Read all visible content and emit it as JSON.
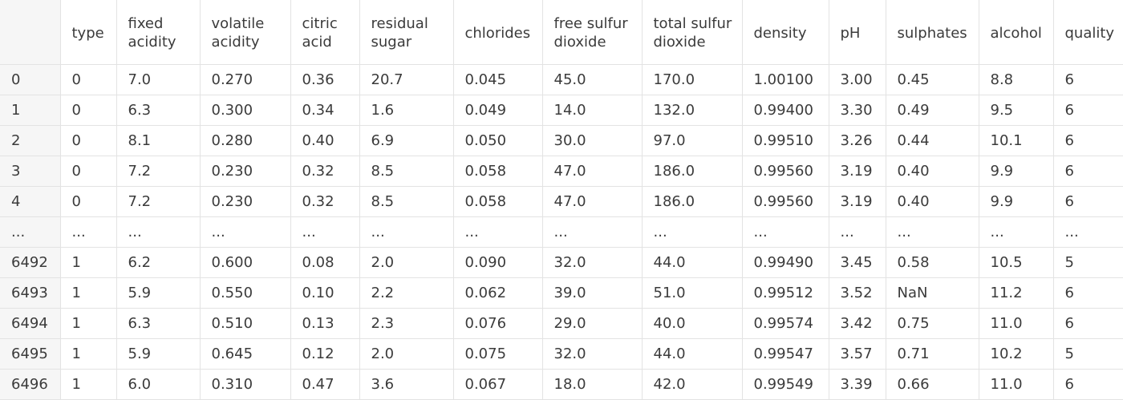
{
  "table": {
    "columns": [
      "",
      "type",
      "fixed acidity",
      "volatile acidity",
      "citric acid",
      "residual sugar",
      "chlorides",
      "free sulfur dioxide",
      "total sulfur dioxide",
      "density",
      "pH",
      "sulphates",
      "alcohol",
      "quality"
    ],
    "rows": [
      [
        "0",
        "0",
        "7.0",
        "0.270",
        "0.36",
        "20.7",
        "0.045",
        "45.0",
        "170.0",
        "1.00100",
        "3.00",
        "0.45",
        "8.8",
        "6"
      ],
      [
        "1",
        "0",
        "6.3",
        "0.300",
        "0.34",
        "1.6",
        "0.049",
        "14.0",
        "132.0",
        "0.99400",
        "3.30",
        "0.49",
        "9.5",
        "6"
      ],
      [
        "2",
        "0",
        "8.1",
        "0.280",
        "0.40",
        "6.9",
        "0.050",
        "30.0",
        "97.0",
        "0.99510",
        "3.26",
        "0.44",
        "10.1",
        "6"
      ],
      [
        "3",
        "0",
        "7.2",
        "0.230",
        "0.32",
        "8.5",
        "0.058",
        "47.0",
        "186.0",
        "0.99560",
        "3.19",
        "0.40",
        "9.9",
        "6"
      ],
      [
        "4",
        "0",
        "7.2",
        "0.230",
        "0.32",
        "8.5",
        "0.058",
        "47.0",
        "186.0",
        "0.99560",
        "3.19",
        "0.40",
        "9.9",
        "6"
      ],
      [
        "...",
        "...",
        "...",
        "...",
        "...",
        "...",
        "...",
        "...",
        "...",
        "...",
        "...",
        "...",
        "...",
        "..."
      ],
      [
        "6492",
        "1",
        "6.2",
        "0.600",
        "0.08",
        "2.0",
        "0.090",
        "32.0",
        "44.0",
        "0.99490",
        "3.45",
        "0.58",
        "10.5",
        "5"
      ],
      [
        "6493",
        "1",
        "5.9",
        "0.550",
        "0.10",
        "2.2",
        "0.062",
        "39.0",
        "51.0",
        "0.99512",
        "3.52",
        "NaN",
        "11.2",
        "6"
      ],
      [
        "6494",
        "1",
        "6.3",
        "0.510",
        "0.13",
        "2.3",
        "0.076",
        "29.0",
        "40.0",
        "0.99574",
        "3.42",
        "0.75",
        "11.0",
        "6"
      ],
      [
        "6495",
        "1",
        "5.9",
        "0.645",
        "0.12",
        "2.0",
        "0.075",
        "32.0",
        "44.0",
        "0.99547",
        "3.57",
        "0.71",
        "10.2",
        "5"
      ],
      [
        "6496",
        "1",
        "6.0",
        "0.310",
        "0.47",
        "3.6",
        "0.067",
        "18.0",
        "42.0",
        "0.99549",
        "3.39",
        "0.66",
        "11.0",
        "6"
      ]
    ]
  }
}
